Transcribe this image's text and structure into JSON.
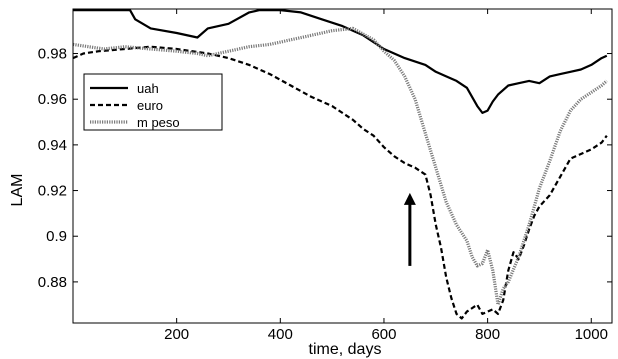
{
  "chart_data": {
    "type": "line",
    "xlabel": "time, days",
    "ylabel": "LAM",
    "xlim": [
      0,
      1040
    ],
    "ylim": [
      0.862,
      0.9995
    ],
    "x_ticks": [
      200,
      400,
      600,
      800,
      1000
    ],
    "y_ticks": [
      0.88,
      0.9,
      0.92,
      0.94,
      0.96,
      0.98
    ],
    "x_tick_labels": [
      "200",
      "400",
      "600",
      "800",
      "1000"
    ],
    "y_tick_labels": [
      "0.88",
      "0.9",
      "0.92",
      "0.94",
      "0.96",
      "0.98"
    ],
    "grid": false,
    "legend_position": "top-left",
    "annotation": {
      "type": "arrow",
      "x": 650,
      "y_from": 0.887,
      "y_to": 0.919
    },
    "series": [
      {
        "name": "uah",
        "style": "solid",
        "color": "#000000",
        "x": [
          0,
          40,
          80,
          110,
          120,
          150,
          200,
          240,
          260,
          300,
          340,
          360,
          380,
          400,
          440,
          480,
          520,
          560,
          600,
          640,
          680,
          700,
          720,
          740,
          760,
          780,
          790,
          800,
          810,
          820,
          840,
          860,
          880,
          900,
          920,
          940,
          960,
          980,
          1000,
          1020,
          1030
        ],
        "y": [
          0.999,
          0.999,
          0.999,
          0.999,
          0.995,
          0.991,
          0.989,
          0.987,
          0.991,
          0.993,
          0.998,
          0.999,
          0.999,
          0.999,
          0.998,
          0.995,
          0.992,
          0.988,
          0.982,
          0.978,
          0.975,
          0.972,
          0.97,
          0.968,
          0.965,
          0.957,
          0.954,
          0.955,
          0.959,
          0.962,
          0.966,
          0.967,
          0.968,
          0.967,
          0.97,
          0.971,
          0.972,
          0.973,
          0.975,
          0.978,
          0.979
        ]
      },
      {
        "name": "euro",
        "style": "dashed",
        "color": "#000000",
        "x": [
          0,
          20,
          50,
          100,
          150,
          200,
          260,
          300,
          340,
          380,
          420,
          460,
          500,
          540,
          560,
          580,
          600,
          620,
          640,
          660,
          680,
          690,
          700,
          710,
          720,
          730,
          740,
          750,
          760,
          780,
          790,
          800,
          810,
          820,
          830,
          840,
          850,
          860,
          870,
          880,
          890,
          900,
          920,
          940,
          960,
          980,
          1000,
          1020,
          1030
        ],
        "y": [
          0.978,
          0.98,
          0.981,
          0.982,
          0.983,
          0.982,
          0.98,
          0.978,
          0.975,
          0.971,
          0.966,
          0.961,
          0.957,
          0.951,
          0.947,
          0.944,
          0.939,
          0.935,
          0.932,
          0.93,
          0.927,
          0.918,
          0.905,
          0.895,
          0.882,
          0.873,
          0.866,
          0.864,
          0.867,
          0.87,
          0.866,
          0.867,
          0.868,
          0.866,
          0.872,
          0.885,
          0.893,
          0.89,
          0.896,
          0.903,
          0.909,
          0.913,
          0.918,
          0.926,
          0.934,
          0.936,
          0.938,
          0.941,
          0.944
        ]
      },
      {
        "name": "m peso",
        "style": "dotted",
        "color": "#7a7a7a",
        "x": [
          0,
          30,
          60,
          100,
          150,
          200,
          240,
          260,
          300,
          340,
          380,
          420,
          460,
          500,
          540,
          580,
          600,
          620,
          640,
          660,
          680,
          700,
          720,
          740,
          760,
          770,
          780,
          790,
          800,
          810,
          820,
          830,
          840,
          860,
          880,
          890,
          900,
          920,
          940,
          960,
          980,
          1000,
          1020,
          1030
        ],
        "y": [
          0.984,
          0.983,
          0.982,
          0.983,
          0.982,
          0.981,
          0.98,
          0.979,
          0.981,
          0.983,
          0.984,
          0.986,
          0.988,
          0.99,
          0.991,
          0.986,
          0.981,
          0.977,
          0.97,
          0.96,
          0.945,
          0.93,
          0.915,
          0.905,
          0.898,
          0.891,
          0.887,
          0.888,
          0.894,
          0.885,
          0.87,
          0.877,
          0.88,
          0.891,
          0.905,
          0.913,
          0.921,
          0.933,
          0.946,
          0.955,
          0.96,
          0.963,
          0.966,
          0.968
        ]
      }
    ]
  }
}
